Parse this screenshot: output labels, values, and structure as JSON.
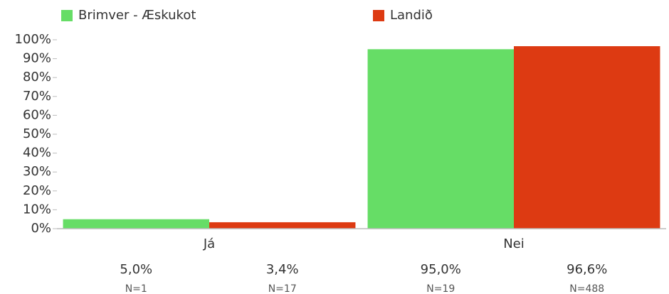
{
  "chart_data": {
    "type": "bar",
    "categories": [
      "Já",
      "Nei"
    ],
    "series": [
      {
        "name": "Brimver - Æskukot",
        "color": "#66dd66",
        "values": [
          5.0,
          95.0
        ],
        "value_labels": [
          "5,0%",
          "95,0%"
        ],
        "n_labels": [
          "N=1",
          "N=19"
        ]
      },
      {
        "name": "Landið",
        "color": "#dd3a12",
        "values": [
          3.4,
          96.6
        ],
        "value_labels": [
          "3,4%",
          "96,6%"
        ],
        "n_labels": [
          "N=17",
          "N=488"
        ]
      }
    ],
    "ylim": [
      0,
      100
    ],
    "yticks": [
      {
        "value": 0,
        "label": "0%"
      },
      {
        "value": 10,
        "label": "10%"
      },
      {
        "value": 20,
        "label": "20%"
      },
      {
        "value": 30,
        "label": "30%"
      },
      {
        "value": 40,
        "label": "40%"
      },
      {
        "value": 50,
        "label": "50%"
      },
      {
        "value": 60,
        "label": "60%"
      },
      {
        "value": 70,
        "label": "70%"
      },
      {
        "value": 80,
        "label": "80%"
      },
      {
        "value": 90,
        "label": "90%"
      },
      {
        "value": 100,
        "label": "100%"
      }
    ],
    "legend": "top"
  }
}
